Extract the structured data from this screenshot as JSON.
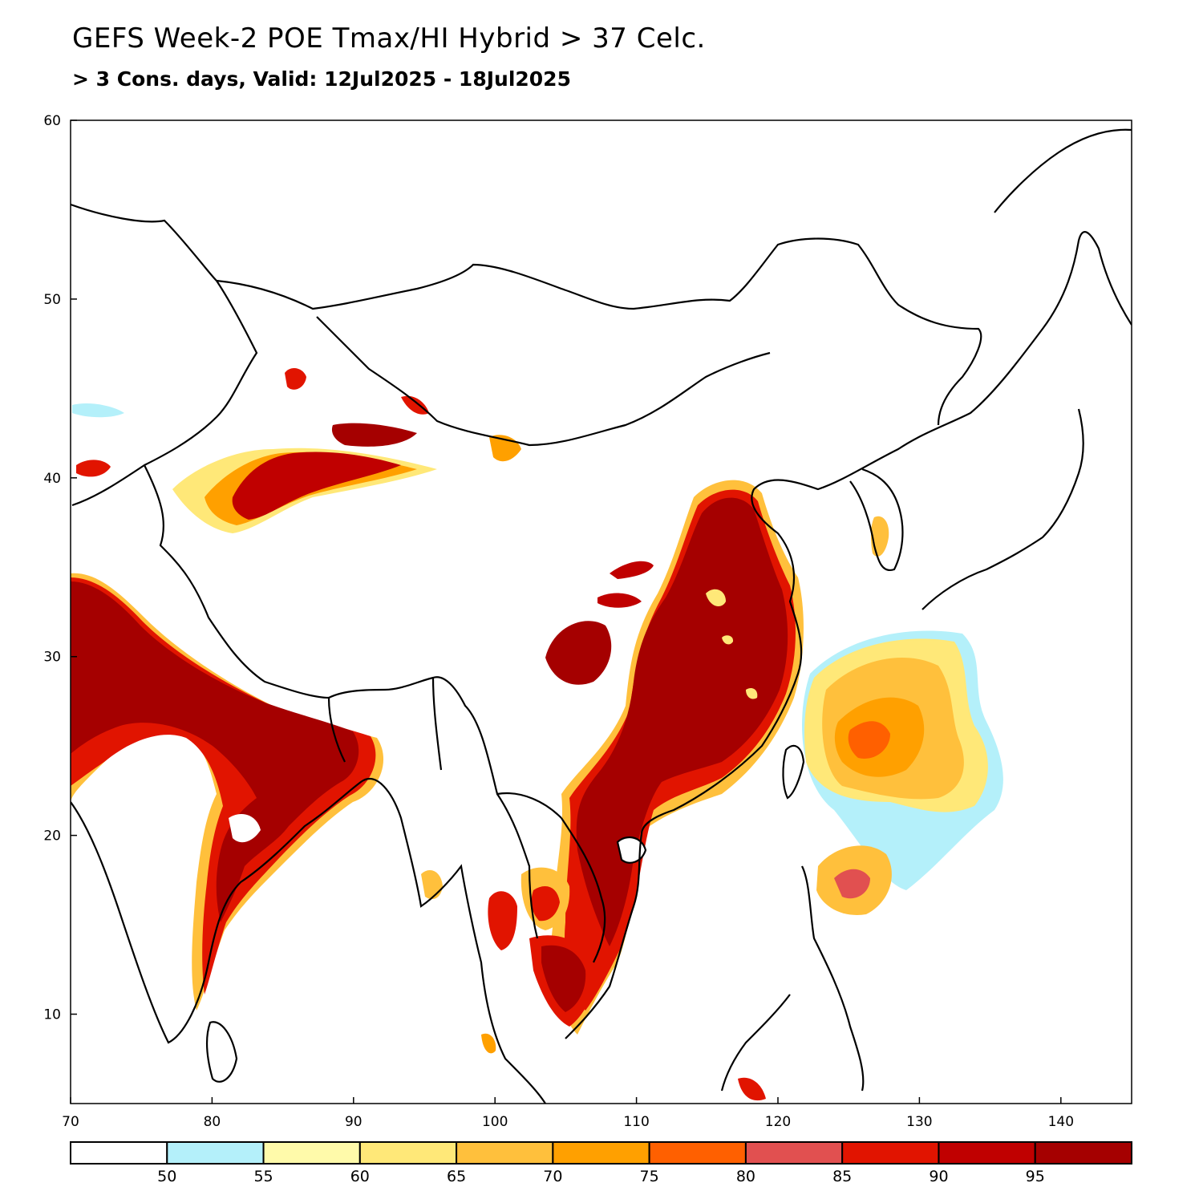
{
  "title": "GEFS Week-2 POE Tmax/HI Hybrid > 37 Celc.",
  "subtitle": "> 3 Cons. days, Valid: 12Jul2025 - 18Jul2025",
  "map": {
    "lon_range": [
      70,
      145
    ],
    "lat_range": [
      5,
      60
    ],
    "x_ticks": [
      "70",
      "80",
      "90",
      "100",
      "110",
      "120",
      "130",
      "140"
    ],
    "y_ticks": [
      "60",
      "50",
      "40",
      "30",
      "20",
      "10"
    ]
  },
  "colorbar": {
    "labels": [
      "50",
      "55",
      "60",
      "65",
      "70",
      "75",
      "80",
      "85",
      "90",
      "95"
    ],
    "colors": [
      "#ffffff",
      "#b4f0fa",
      "#fffaaa",
      "#ffe878",
      "#ffc03c",
      "#ffa000",
      "#ff6000",
      "#e15050",
      "#e11400",
      "#c00000",
      "#a50000"
    ]
  }
}
